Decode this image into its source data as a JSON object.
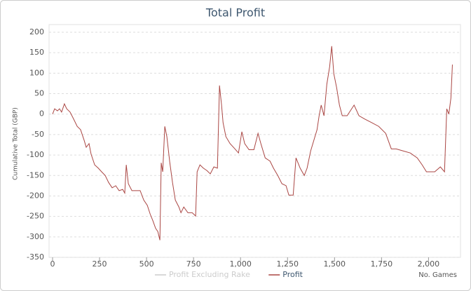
{
  "chart_data": {
    "type": "line",
    "title": "Total Profit",
    "y_label": "Cumulative Total (GBP)",
    "x_label": "No. Games",
    "x": [
      0,
      11,
      26,
      37,
      48,
      63,
      75,
      93,
      112,
      131,
      149,
      168,
      179,
      194,
      205,
      224,
      243,
      261,
      280,
      298,
      317,
      336,
      354,
      373,
      384,
      392,
      403,
      422,
      448,
      466,
      485,
      504,
      519,
      534,
      548,
      560,
      571,
      578,
      586,
      597,
      608,
      623,
      638,
      653,
      672,
      683,
      698,
      720,
      743,
      761,
      769,
      784,
      802,
      821,
      839,
      858,
      877,
      888,
      899,
      907,
      922,
      944,
      970,
      989,
      1007,
      1022,
      1045,
      1071,
      1093,
      1108,
      1131,
      1157,
      1175,
      1198,
      1220,
      1242,
      1257,
      1280,
      1295,
      1317,
      1339,
      1354,
      1373,
      1407,
      1418,
      1429,
      1444,
      1459,
      1474,
      1485,
      1496,
      1511,
      1526,
      1541,
      1567,
      1604,
      1630,
      1660,
      1698,
      1735,
      1772,
      1802,
      1828,
      1865,
      1903,
      1940,
      1966,
      1989,
      2033,
      2063,
      2085,
      2097,
      2108,
      2119,
      2127
    ],
    "series": [
      {
        "name": "Profit Excluding Rake",
        "color": "#cccccc",
        "visible": false,
        "values": [
          null,
          null,
          null,
          null,
          null,
          null,
          null,
          null,
          null,
          null,
          null,
          null,
          null,
          null,
          null,
          null,
          null,
          null,
          null,
          null,
          null,
          null,
          null,
          null,
          null,
          null,
          null,
          null,
          null,
          null,
          null,
          null,
          null,
          null,
          null,
          null,
          null,
          null,
          null,
          null,
          null,
          null,
          null,
          null,
          null,
          null,
          null,
          null,
          null,
          null,
          null,
          null,
          null,
          null,
          null,
          null,
          null,
          null,
          null,
          null,
          null,
          null,
          null,
          null,
          null,
          null,
          null,
          null,
          null,
          null,
          null,
          null,
          null,
          null,
          null,
          null,
          null,
          null,
          null,
          null,
          null,
          null,
          null,
          null,
          null,
          null,
          null,
          null,
          null,
          null,
          null,
          null,
          null,
          null,
          null,
          null,
          null,
          null,
          null,
          null,
          null,
          null,
          null,
          null,
          null,
          null,
          null,
          null,
          null,
          null,
          null,
          null,
          null,
          null,
          null
        ]
      },
      {
        "name": "Profit",
        "color": "#aa4643",
        "visible": true,
        "values": [
          0,
          13,
          8,
          13,
          5,
          25,
          13,
          5,
          -12,
          -30,
          -38,
          -64,
          -81,
          -72,
          -98,
          -124,
          -132,
          -141,
          -150,
          -167,
          -180,
          -175,
          -187,
          -184,
          -193,
          -124,
          -170,
          -187,
          -187,
          -187,
          -210,
          -223,
          -244,
          -261,
          -279,
          -287,
          -308,
          -119,
          -141,
          -30,
          -55,
          -116,
          -167,
          -210,
          -227,
          -241,
          -227,
          -241,
          -241,
          -249,
          -141,
          -124,
          -132,
          -138,
          -146,
          -129,
          -132,
          70,
          22,
          -21,
          -55,
          -72,
          -85,
          -95,
          -43,
          -72,
          -87,
          -87,
          -47,
          -72,
          -107,
          -115,
          -132,
          -150,
          -170,
          -175,
          -198,
          -198,
          -107,
          -132,
          -150,
          -132,
          -90,
          -38,
          -4,
          22,
          -4,
          73,
          116,
          166,
          99,
          65,
          22,
          -4,
          -4,
          22,
          -4,
          -12,
          -21,
          -30,
          -47,
          -85,
          -85,
          -90,
          -95,
          -107,
          -124,
          -141,
          -141,
          -129,
          -141,
          13,
          0,
          39,
          121
        ]
      }
    ],
    "xlim": [
      0,
      2170
    ],
    "ylim": [
      -350,
      200
    ],
    "xticks": [
      0,
      250,
      500,
      750,
      {
        "value": 1000,
        "label": "1,000"
      },
      {
        "value": 1250,
        "label": "1,250"
      },
      {
        "value": 1500,
        "label": "1,500"
      },
      {
        "value": 1750,
        "label": "1,750"
      },
      {
        "value": 2000,
        "label": "2,000"
      }
    ],
    "yticks": [
      200,
      150,
      100,
      50,
      0,
      -50,
      -100,
      -150,
      -200,
      -250,
      -300,
      -350
    ],
    "grid": true
  }
}
